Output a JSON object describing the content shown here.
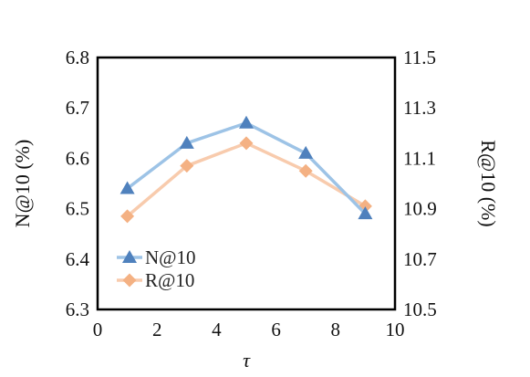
{
  "chart_data": {
    "type": "line",
    "xlabel": "τ",
    "ylabel_left": "N@10 (%)",
    "ylabel_right": "R@10 (%)",
    "xlim": [
      0,
      10
    ],
    "ylim_left": [
      6.3,
      6.8
    ],
    "ylim_right": [
      10.5,
      11.5
    ],
    "x_ticks": [
      "0",
      "2",
      "4",
      "6",
      "8",
      "10"
    ],
    "y_left_ticks": [
      "6.3",
      "6.4",
      "6.5",
      "6.6",
      "6.7",
      "6.8"
    ],
    "y_right_ticks": [
      "10.5",
      "10.7",
      "10.9",
      "11.1",
      "11.3",
      "11.5"
    ],
    "legend_position": "bottom-left",
    "grid": false,
    "series": [
      {
        "name": "N@10",
        "axis": "left",
        "marker": "triangle",
        "line_color": "#9dc3e6",
        "marker_color": "#4f81bd",
        "x": [
          1,
          3,
          5,
          7,
          9
        ],
        "values": [
          6.54,
          6.63,
          6.67,
          6.61,
          6.49
        ]
      },
      {
        "name": "R@10",
        "axis": "right",
        "marker": "diamond",
        "line_color": "#f8cbad",
        "marker_color": "#f4b183",
        "x": [
          1,
          3,
          5,
          7,
          9
        ],
        "values": [
          10.87,
          11.07,
          11.16,
          11.05,
          10.91
        ]
      }
    ]
  }
}
